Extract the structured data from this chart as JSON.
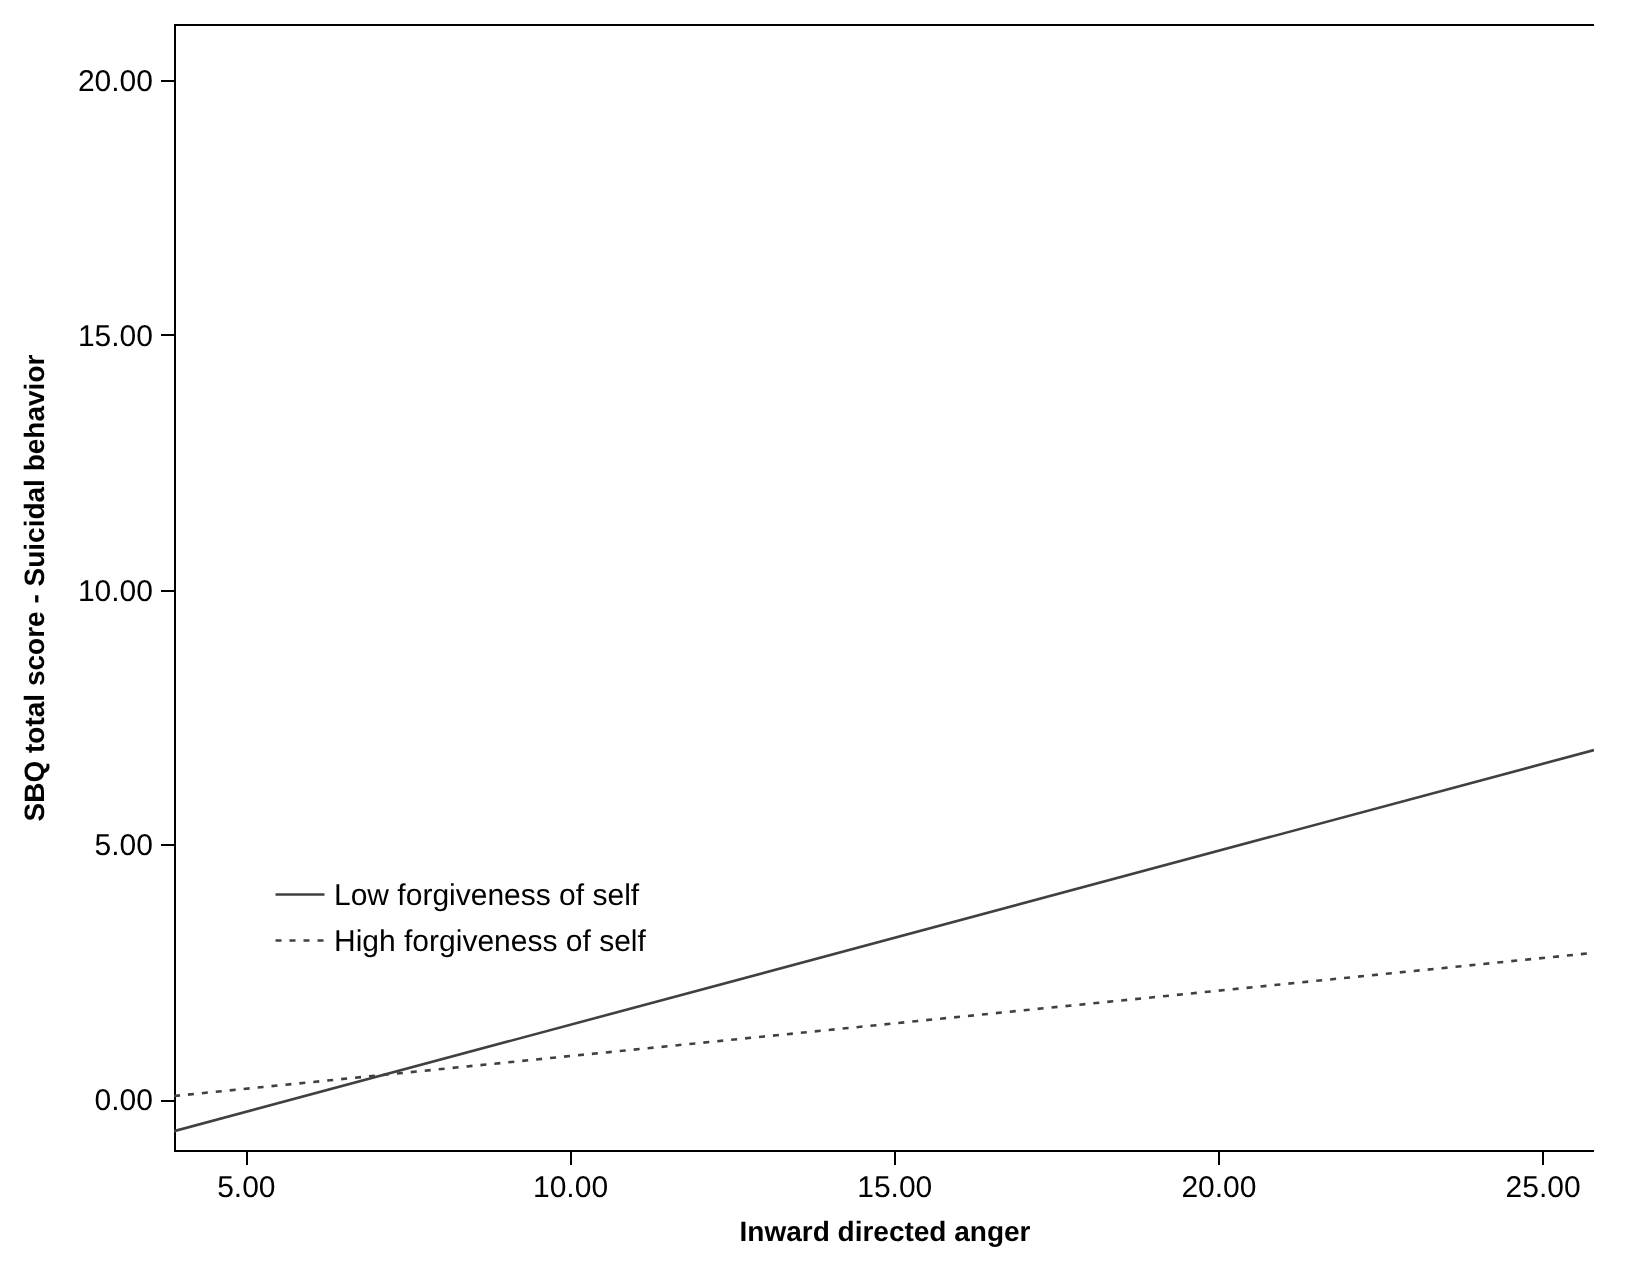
{
  "chart_data": {
    "type": "line",
    "xlabel": "Inward directed anger",
    "ylabel": "SBQ total score - Suicidal behavior",
    "x": [
      3.9,
      25.8
    ],
    "series": [
      {
        "name": "Low forgiveness of self",
        "color": "#404040",
        "line_style": "solid",
        "values": [
          -0.63,
          6.85
        ]
      },
      {
        "name": "High forgiveness of self",
        "color": "#404040",
        "line_style": "dashed",
        "values": [
          0.06,
          2.87
        ]
      }
    ],
    "xlim": [
      3.9,
      25.8
    ],
    "xticks": [
      {
        "value": 5,
        "label": "5.00"
      },
      {
        "value": 10,
        "label": "10.00"
      },
      {
        "value": 15,
        "label": "15.00"
      },
      {
        "value": 20,
        "label": "20.00"
      },
      {
        "value": 25,
        "label": "25.00"
      }
    ],
    "ylim": [
      -1.0,
      21.1
    ],
    "yticks": [
      {
        "value": 0,
        "label": "0.00"
      },
      {
        "value": 5,
        "label": "5.00"
      },
      {
        "value": 10,
        "label": "10.00"
      },
      {
        "value": 15,
        "label": "15.00"
      },
      {
        "value": 20,
        "label": "20.00"
      }
    ],
    "grid": false,
    "legend": "left",
    "marker": "none"
  }
}
